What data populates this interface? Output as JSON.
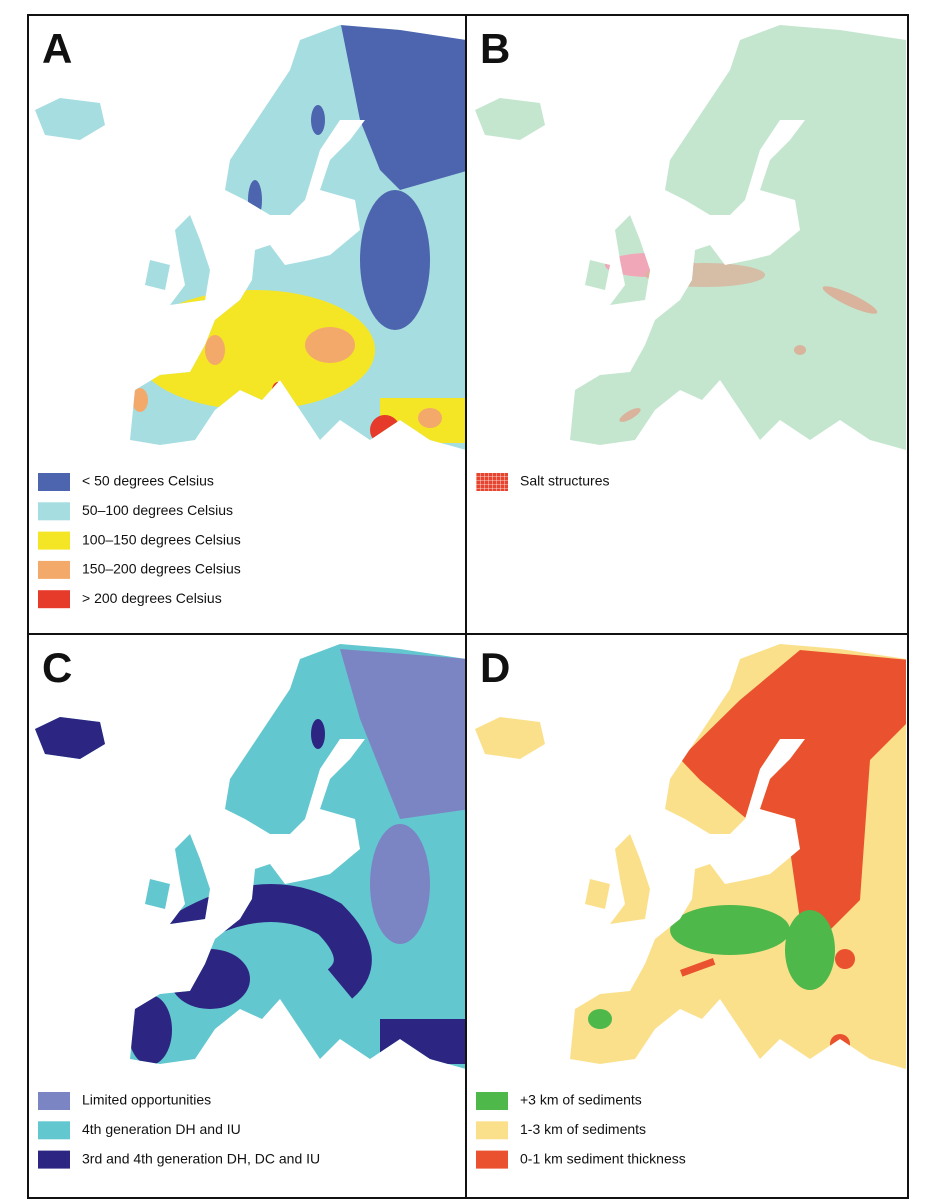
{
  "panels": [
    {
      "letter": "A",
      "legend": [
        {
          "label": "< 50 degrees Celsius",
          "color": "#4d64ae"
        },
        {
          "label": "50–100 degrees Celsius",
          "color": "#a6dde0"
        },
        {
          "label": "100–150 degrees Celsius",
          "color": "#f5e625"
        },
        {
          "label": "150–200 degrees Celsius",
          "color": "#f3a96a"
        },
        {
          "label": "> 200 degrees Celsius",
          "color": "#e63b2a"
        }
      ]
    },
    {
      "letter": "B",
      "legend": [
        {
          "label": "Salt structures",
          "color": "#e8432e",
          "pattern": "grid"
        }
      ]
    },
    {
      "letter": "C",
      "legend": [
        {
          "label": "Limited opportunities",
          "color": "#7b85c4"
        },
        {
          "label": "4th generation DH and IU",
          "color": "#63c7d0"
        },
        {
          "label": "3rd and 4th generation DH, DC and IU",
          "color": "#2c2682"
        }
      ]
    },
    {
      "letter": "D",
      "legend": [
        {
          "label": "+3 km of sediments",
          "color": "#4fb84a"
        },
        {
          "label": "1-3 km of sediments",
          "color": "#fbe08c"
        },
        {
          "label": "0-1 km sediment thickness",
          "color": "#e9512f"
        }
      ]
    }
  ]
}
